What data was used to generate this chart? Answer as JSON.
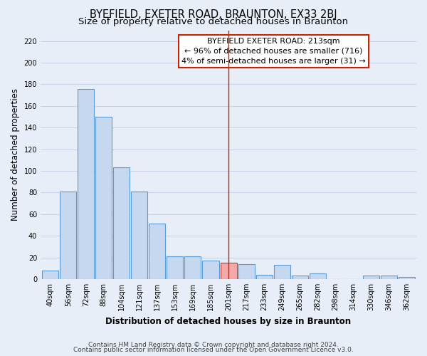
{
  "title": "BYEFIELD, EXETER ROAD, BRAUNTON, EX33 2BJ",
  "subtitle": "Size of property relative to detached houses in Braunton",
  "xlabel": "Distribution of detached houses by size in Braunton",
  "ylabel": "Number of detached properties",
  "bar_labels": [
    "40sqm",
    "56sqm",
    "72sqm",
    "88sqm",
    "104sqm",
    "121sqm",
    "137sqm",
    "153sqm",
    "169sqm",
    "185sqm",
    "201sqm",
    "217sqm",
    "233sqm",
    "249sqm",
    "265sqm",
    "282sqm",
    "298sqm",
    "314sqm",
    "330sqm",
    "346sqm",
    "362sqm"
  ],
  "bar_values": [
    8,
    81,
    176,
    150,
    103,
    81,
    51,
    21,
    21,
    17,
    15,
    14,
    4,
    13,
    3,
    5,
    0,
    0,
    3,
    3,
    2
  ],
  "bar_color": "#c5d8ef",
  "bar_edge_color": "#5b9bd5",
  "highlight_bar_index": 10,
  "highlight_bar_color": "#f4a9a8",
  "highlight_bar_edge_color": "#c0392b",
  "vline_color": "#cc2200",
  "ylim": [
    0,
    230
  ],
  "yticks": [
    0,
    20,
    40,
    60,
    80,
    100,
    120,
    140,
    160,
    180,
    200,
    220
  ],
  "annotation_title": "BYEFIELD EXETER ROAD: 213sqm",
  "annotation_line1": "← 96% of detached houses are smaller (716)",
  "annotation_line2": "4% of semi-detached houses are larger (31) →",
  "footer1": "Contains HM Land Registry data © Crown copyright and database right 2024.",
  "footer2": "Contains public sector information licensed under the Open Government Licence v3.0.",
  "background_color": "#e8eef7",
  "grid_color": "#c8d4e8",
  "title_fontsize": 10.5,
  "subtitle_fontsize": 9.5,
  "axis_label_fontsize": 8.5,
  "tick_fontsize": 7,
  "footer_fontsize": 6.5,
  "annotation_fontsize": 8
}
